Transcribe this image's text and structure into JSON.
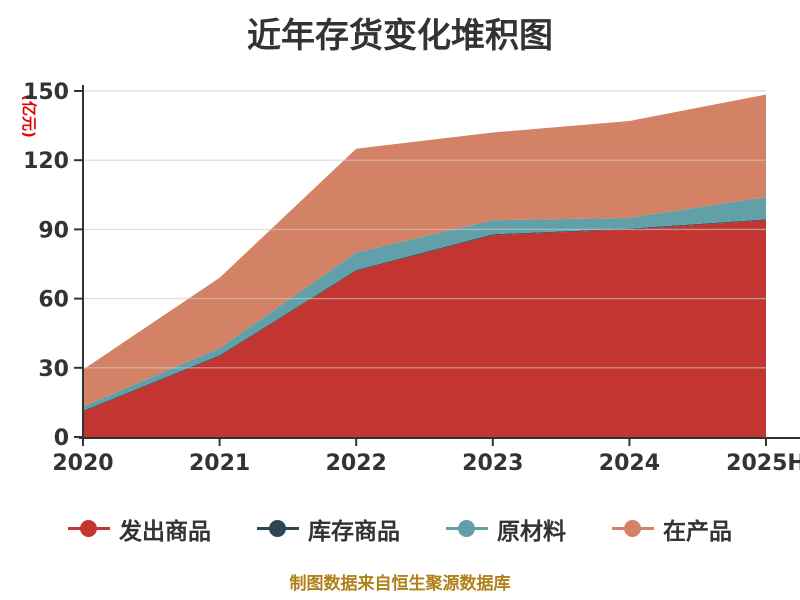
{
  "title": "近年存货变化堆积图",
  "y_axis_name": "(亿元)",
  "footer": "制图数据来自恒生聚源数据库",
  "colors": {
    "title": "#333333",
    "axis": "#333333",
    "grid": "#cccccc",
    "y_axis_name": "#e60000",
    "footer": "#b1801b",
    "background": "#ffffff"
  },
  "chart_data": {
    "type": "area",
    "stacked": true,
    "title": "近年存货变化堆积图",
    "ylabel": "(亿元)",
    "xlabel": "",
    "x": [
      "2020",
      "2021",
      "2022",
      "2023",
      "2024",
      "2025H"
    ],
    "series": [
      {
        "name": "发出商品",
        "color": "#c23531",
        "values": [
          11,
          35,
          72,
          87.5,
          90,
          94
        ]
      },
      {
        "name": "库存商品",
        "color": "#2f4554",
        "values": [
          0.4,
          0.4,
          0.4,
          0.4,
          0.4,
          0.4
        ]
      },
      {
        "name": "原材料",
        "color": "#61a0a8",
        "values": [
          1.8,
          3.2,
          7.6,
          6.1,
          4.6,
          9.6
        ]
      },
      {
        "name": "在产品",
        "color": "#d48265",
        "values": [
          16,
          30.4,
          45,
          38,
          42,
          44.5
        ]
      }
    ],
    "stack_totals": [
      29.2,
      69,
      125,
      132,
      137,
      148.5
    ],
    "ylim": [
      0,
      150
    ],
    "yticks": [
      0,
      30,
      60,
      90,
      120,
      150
    ],
    "grid": true,
    "legend_position": "bottom",
    "legend": [
      "发出商品",
      "库存商品",
      "原材料",
      "在产品"
    ]
  }
}
